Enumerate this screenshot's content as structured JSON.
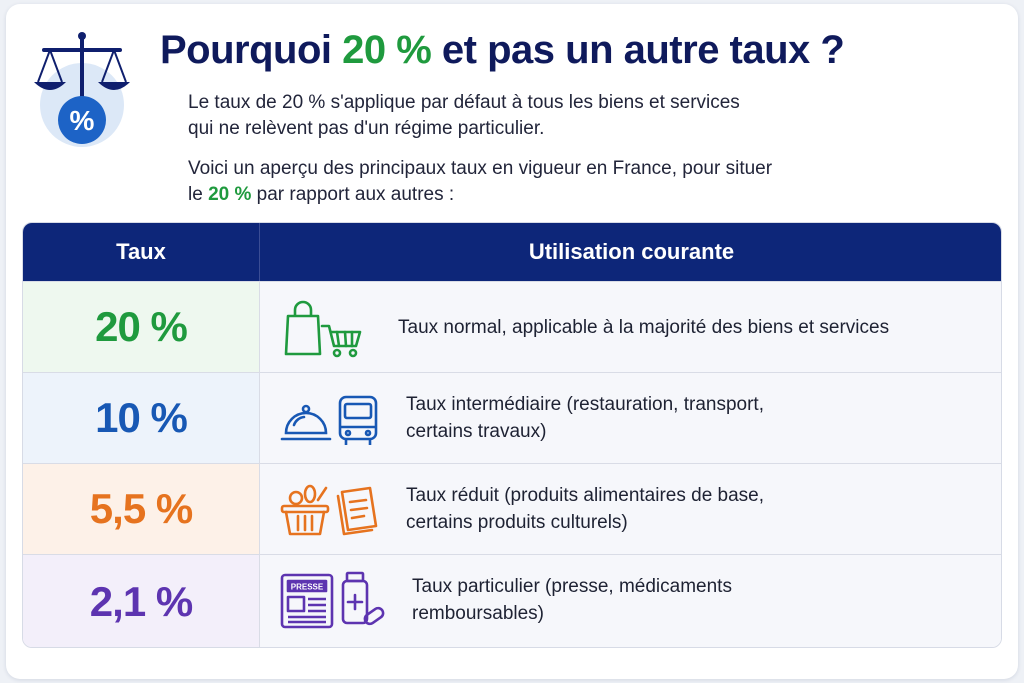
{
  "title": {
    "prefix": "Pourquoi ",
    "accent": "20 %",
    "suffix": " et pas un autre taux ?"
  },
  "logo": {
    "symbol": "%",
    "icon": "scales-percent-icon"
  },
  "intro": {
    "paragraph1_line1": "Le taux de 20 % s'applique par défaut à tous les biens et services",
    "paragraph1_line2": "qui ne relèvent pas d'un régime particulier.",
    "paragraph2_line1": "Voici un aperçu des principaux taux en vigueur en France, pour situer",
    "paragraph2_line2_prefix": "le ",
    "paragraph2_line2_accent": "20 %",
    "paragraph2_line2_suffix": " par rapport aux autres :"
  },
  "table": {
    "headers": {
      "rate": "Taux",
      "usage": "Utilisation courante"
    },
    "rows": [
      {
        "rate": "20 %",
        "line1": "Taux normal, applicable à la majorité des biens et services",
        "line2": "",
        "icons": [
          "shopping-bag-icon",
          "shopping-cart-icon"
        ],
        "color": "#1f9a3e"
      },
      {
        "rate": "10 %",
        "line1": "Taux intermédiaire (restauration, transport,",
        "line2": "certains travaux)",
        "icons": [
          "cloche-icon",
          "bus-icon"
        ],
        "color": "#1858b4"
      },
      {
        "rate": "5,5 %",
        "line1": "Taux réduit (produits alimentaires de base,",
        "line2": "certains produits culturels)",
        "icons": [
          "food-basket-icon",
          "book-icon"
        ],
        "color": "#e6731f"
      },
      {
        "rate": "2,1 %",
        "line1": "Taux particulier (presse, médicaments",
        "line2": "remboursables)",
        "icons": [
          "newspaper-icon",
          "medicine-icon"
        ],
        "color": "#5d34b0",
        "newspaper_label": "PRESSE"
      }
    ]
  }
}
